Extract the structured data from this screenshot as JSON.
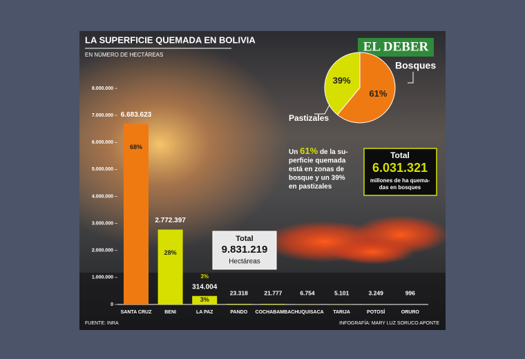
{
  "chart_data": [
    {
      "type": "bar",
      "title": "LA SUPERFICIE QUEMADA EN BOLIVIA",
      "subtitle": "EN NÚMERO DE HECTÁREAS",
      "categories": [
        "SANTA CRUZ",
        "BENI",
        "LA PAZ",
        "PANDO",
        "COCHABAMBA",
        "CHUQUISACA",
        "TARIJA",
        "POTOSÍ",
        "ORURO"
      ],
      "values": [
        6683623,
        2772397,
        314004,
        23318,
        21777,
        6754,
        5101,
        3249,
        996
      ],
      "value_labels": [
        "6.683.623",
        "2.772.397",
        "314.004",
        "23.318",
        "21.777",
        "6.754",
        "5.101",
        "3.249",
        "996"
      ],
      "share_labels": [
        "68%",
        "28%",
        "3%",
        null,
        null,
        null,
        null,
        null,
        null
      ],
      "colors": [
        "#f07a12",
        "#d6df00",
        "#d6df00",
        "#d6df00",
        "#d6df00",
        "#d6df00",
        "#d6df00",
        "#d6df00",
        "#d6df00"
      ],
      "ylim": [
        0,
        8000000
      ],
      "yticks": [
        0,
        {
          "value": 1000000,
          "label": "1.000.000"
        },
        {
          "value": 2000000,
          "label": "2.000.000"
        },
        {
          "value": 3000000,
          "label": "3.000.000"
        },
        {
          "value": 4000000,
          "label": "4.000.000"
        },
        {
          "value": 5000000,
          "label": "5.000.000"
        },
        {
          "value": 6000000,
          "label": "6.000.000"
        },
        {
          "value": 7000000,
          "label": "7.000.000"
        },
        {
          "value": 8000000,
          "label": "8.000.000"
        }
      ],
      "grid": false,
      "total": {
        "label": "Total",
        "value": "9.831.219",
        "unit": "Hectáreas"
      },
      "source": "FUENTE: INRA",
      "credit": "INFOGRAFÍA: MARY LUZ SORUCO APONTE",
      "logo": "EL DEBER"
    },
    {
      "type": "pie",
      "categories": [
        "Pastizales",
        "Bosques"
      ],
      "values": [
        39,
        61
      ],
      "value_labels": [
        "39%",
        "61%"
      ],
      "colors": [
        "#d6df00",
        "#f07a12"
      ],
      "note": {
        "pre": "Un",
        "highlight": "61%",
        "lines": [
          "de la su-",
          "perficie quemada",
          "está en zonas de",
          "bosque y un 39%",
          "en pastizales"
        ]
      },
      "total": {
        "label": "Total",
        "value": "6.031.321",
        "unit_lines": [
          "millones de ha quema-",
          "das en bosques"
        ]
      }
    }
  ]
}
